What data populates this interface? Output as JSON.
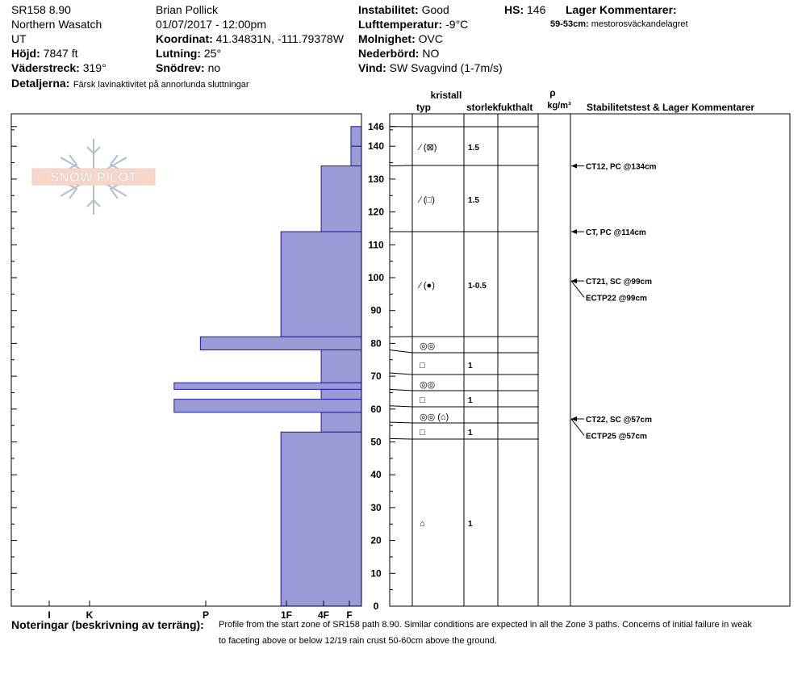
{
  "header": {
    "col1": [
      "SR158 8.90",
      "Northern Wasatch",
      "UT"
    ],
    "hojd_label": "Höjd:",
    "hojd_value": "7847 ft",
    "vaderstreck_label": "Väderstreck:",
    "vaderstreck_value": "319°",
    "detaljer_label": "Detaljerna:",
    "detaljer_value": "Färsk lavinaktivitet på annorlunda sluttningar",
    "observer": "Brian Pollick",
    "datetime": "01/07/2017 - 12:00pm",
    "koordinat_label": "Koordinat:",
    "koordinat_value": "41.34831N, -111.79378W",
    "lutning_label": "Lutning:",
    "lutning_value": "25°",
    "snodrev_label": "Snödrev:",
    "snodrev_value": "no",
    "instab_label": "Instabilitet:",
    "instab_value": "Good",
    "lufttemp_label": "Lufttemperatur:",
    "lufttemp_value": "-9°C",
    "molnighet_label": "Molnighet:",
    "molnighet_value": "OVC",
    "nederbord_label": "Nederbörd:",
    "nederbord_value": "NO",
    "vind_label": "Vind:",
    "vind_value": "SW  Svagvind (1-7m/s)",
    "hs_label": "HS:",
    "hs_value": "146",
    "lager_title": "Lager Kommentarer:",
    "lager_range": "59-53cm:",
    "lager_text": "mestorosväckandelagret"
  },
  "logo_text": "SNOW PILOT",
  "columns": {
    "kristall": "kristall",
    "typ": "typ",
    "storlek": "storlek",
    "fukthalt": "fukthalt",
    "rho": "ρ",
    "density_unit": "kg/m³",
    "stab": "Stabilitetstest & Lager Kommentarer"
  },
  "notes": {
    "label": "Noteringar (beskrivning av terräng):",
    "line1": "Profile from the start zone of SR158 path 8.90.  Similar conditions are expected in all the Zone 3 paths.  Concerns of initial failure in weak",
    "line2": "to faceting above or below 12/19 rain crust 50-60cm above the ground."
  },
  "chart_data": {
    "type": "snow-profile",
    "y_unit": "cm",
    "ylim": [
      0,
      150
    ],
    "y_ticks": [
      0,
      10,
      20,
      30,
      40,
      50,
      60,
      70,
      80,
      90,
      100,
      110,
      120,
      130,
      140
    ],
    "hs_tick": 146,
    "hardness_scale": [
      "F",
      "4F",
      "1F",
      "P",
      "K",
      "I"
    ],
    "hardness_tick_labels": [
      "I",
      "K",
      "P",
      "1F",
      "4F",
      "F"
    ],
    "hardness_profile": [
      {
        "bottom": 140,
        "top": 146,
        "hardness": "F"
      },
      {
        "bottom": 114,
        "top": 134,
        "hardness": "4F"
      },
      {
        "bottom": 82,
        "top": 114,
        "hardness": "1F"
      },
      {
        "bottom": 78,
        "top": 82,
        "hardness": "P"
      },
      {
        "bottom": 68,
        "top": 78,
        "hardness": "4F"
      },
      {
        "bottom": 66,
        "top": 68,
        "hardness": "P+"
      },
      {
        "bottom": 63,
        "top": 66,
        "hardness": "4F"
      },
      {
        "bottom": 59,
        "top": 63,
        "hardness": "P+"
      },
      {
        "bottom": 53,
        "top": 59,
        "hardness": "4F"
      },
      {
        "bottom": 0,
        "top": 53,
        "hardness": "1F"
      }
    ],
    "hardness_bars": [
      {
        "bottom": 140,
        "top": 146,
        "value": 0.03
      },
      {
        "bottom": 134,
        "top": 140,
        "value": 0.03
      },
      {
        "bottom": 114,
        "top": 134,
        "value": 0.115
      },
      {
        "bottom": 82,
        "top": 114,
        "value": 0.23
      },
      {
        "bottom": 78,
        "top": 82,
        "value": 0.46
      },
      {
        "bottom": 68,
        "top": 78,
        "value": 0.115
      },
      {
        "bottom": 66,
        "top": 68,
        "value": 0.535
      },
      {
        "bottom": 63,
        "top": 66,
        "value": 0.115
      },
      {
        "bottom": 59,
        "top": 63,
        "value": 0.535
      },
      {
        "bottom": 53,
        "top": 59,
        "value": 0.115
      },
      {
        "bottom": 0,
        "top": 53,
        "value": 0.23
      }
    ],
    "layer_boundaries": [
      146,
      134,
      114,
      82,
      78,
      71,
      66,
      61,
      56,
      51
    ],
    "layers": [
      {
        "cm": 140,
        "row": 1,
        "symbol": "⁄ (⊠)",
        "size": "1.5"
      },
      {
        "cm": 124,
        "row": 2,
        "symbol": "⁄ (□)",
        "size": "1.5"
      },
      {
        "cm": 99,
        "row": 3,
        "symbol": "⁄ (●)",
        "size": "1-0.5"
      },
      {
        "cm": 80,
        "row": 4,
        "symbol": "◎◎",
        "size": ""
      },
      {
        "cm": 74,
        "row": 5,
        "symbol": "□",
        "size": "1"
      },
      {
        "cm": 68,
        "row": 6,
        "symbol": "◎◎",
        "size": ""
      },
      {
        "cm": 63,
        "row": 7,
        "symbol": "□",
        "size": "1"
      },
      {
        "cm": 58,
        "row": 8,
        "symbol": "◎◎ (⌂)",
        "size": ""
      },
      {
        "cm": 53,
        "row": 9,
        "symbol": "□",
        "size": "1"
      },
      {
        "cm": 25,
        "row": 10,
        "symbol": "⌂",
        "size": "1"
      }
    ],
    "tests": [
      {
        "label": "CT12, PC @134cm",
        "cm": 134,
        "text_cm": 134
      },
      {
        "label": "CT, PC @114cm",
        "cm": 114,
        "text_cm": 114
      },
      {
        "label": "CT21, SC @99cm",
        "cm": 99,
        "text_cm": 99
      },
      {
        "label": "ECTP22 @99cm",
        "cm": 99,
        "text_cm": 94
      },
      {
        "label": "CT22, SC @57cm",
        "cm": 57,
        "text_cm": 57
      },
      {
        "label": "ECTP25 @57cm",
        "cm": 57,
        "text_cm": 52
      }
    ]
  }
}
